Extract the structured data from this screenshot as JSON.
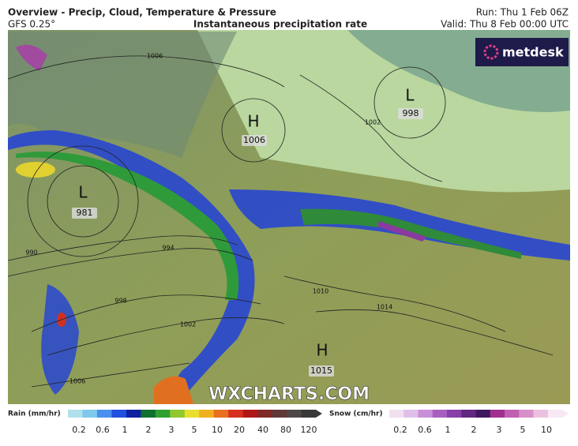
{
  "header": {
    "title": "Overview - Precip, Cloud, Temperature & Pressure",
    "model": "GFS 0.25°",
    "subtitle": "Instantaneous precipitation rate",
    "run": "Run: Thu 1 Feb 06Z",
    "valid": "Valid: Thu 8 Feb 00:00 UTC"
  },
  "logo": "metdesk",
  "watermark": "WXCHARTS.COM",
  "pressure_centers": [
    {
      "type": "H",
      "value": 1006
    },
    {
      "type": "L",
      "value": 981
    },
    {
      "type": "L",
      "value": 998
    },
    {
      "type": "H",
      "value": 1015
    }
  ],
  "isobar_labels": [
    1006,
    1002,
    990,
    994,
    998,
    1002,
    1006,
    1010,
    1014
  ],
  "legend": {
    "rain": {
      "label": "Rain (mm/hr)",
      "ticks": [
        0.2,
        0.6,
        1,
        2,
        3,
        5,
        10,
        20,
        40,
        80,
        120
      ]
    },
    "snow": {
      "label": "Snow (cm/hr)",
      "ticks": [
        0.2,
        0.6,
        1,
        2,
        3,
        5,
        10
      ]
    }
  }
}
